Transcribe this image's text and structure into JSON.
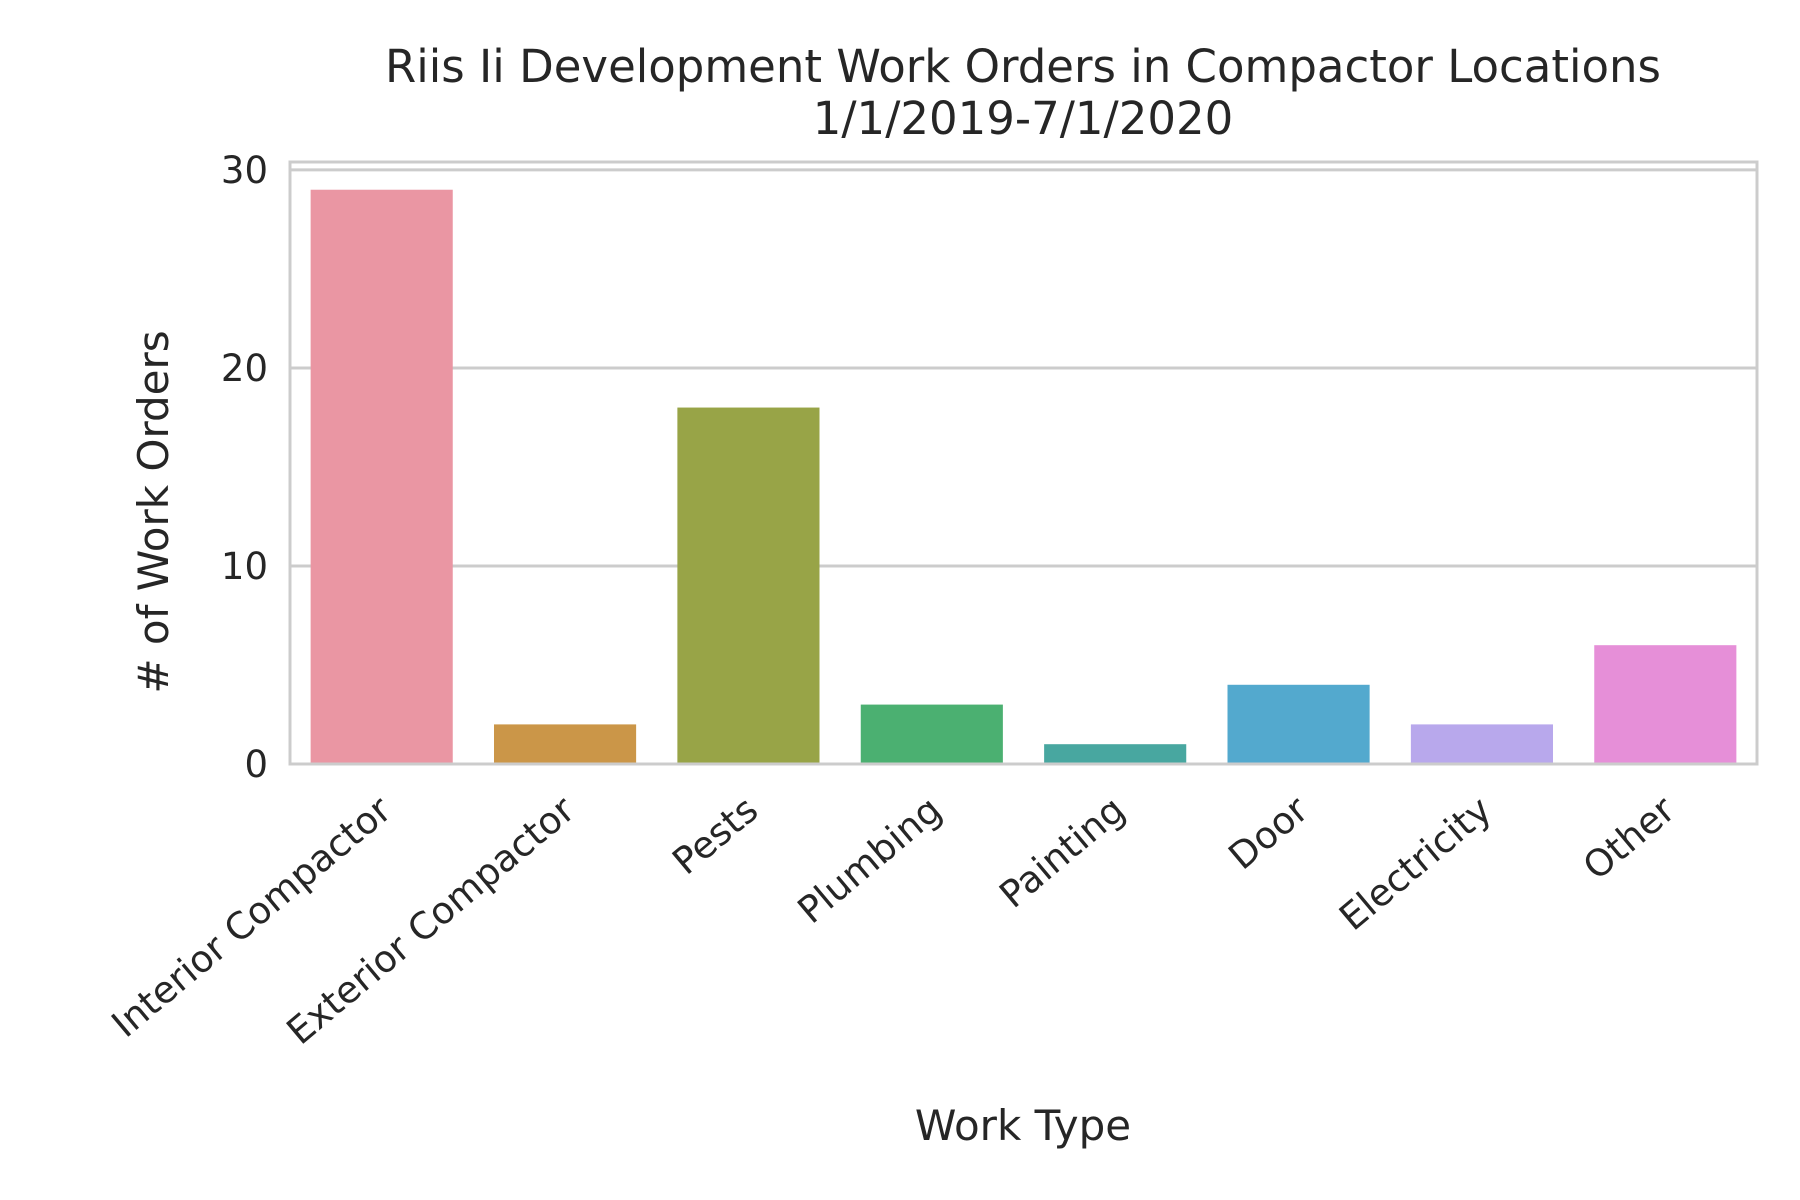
{
  "chart_data": {
    "type": "bar",
    "title_line1": "Riis Ii Development Work Orders in Compactor Locations",
    "title_line2": "1/1/2019-7/1/2020",
    "xlabel": "Work Type",
    "ylabel": "# of Work Orders",
    "categories": [
      "Interior Compactor",
      "Exterior Compactor",
      "Pests",
      "Plumbing",
      "Painting",
      "Door",
      "Electricity",
      "Other"
    ],
    "values": [
      29,
      2,
      18,
      3,
      1,
      4,
      2,
      6
    ],
    "colors": [
      "#ea96a3",
      "#cb9648",
      "#98a447",
      "#4bb071",
      "#48a7a0",
      "#53a9ce",
      "#b8a8ec",
      "#e68fd8"
    ],
    "yticks": [
      "0",
      "10",
      "20",
      "30"
    ],
    "ylim": [
      0,
      30.4
    ],
    "grid": true,
    "legend": "none"
  }
}
